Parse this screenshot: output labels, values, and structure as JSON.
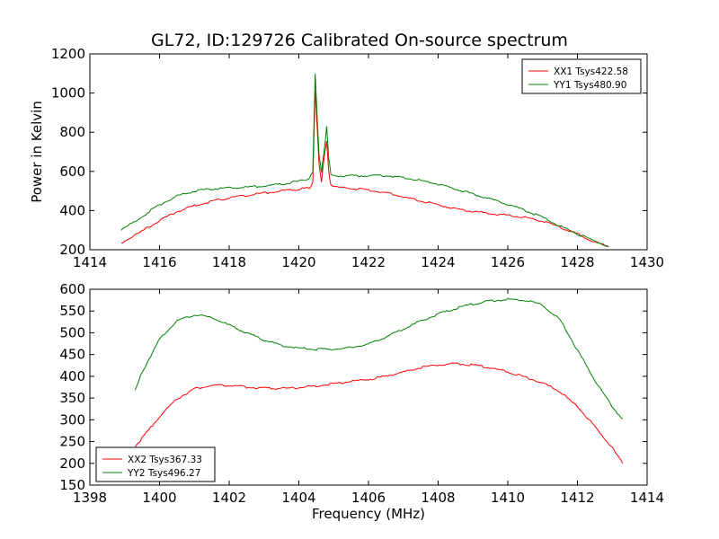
{
  "figure": {
    "title": "GL72, ID:129726 Calibrated On-source spectrum",
    "xlabel": "Frequency (MHz)"
  },
  "chart_data": [
    {
      "type": "line",
      "id": "top",
      "title": "GL72, ID:129726 Calibrated On-source spectrum",
      "xlabel": "",
      "ylabel": "Power in Kelvin",
      "xlim": [
        1414,
        1430
      ],
      "ylim": [
        200,
        1200
      ],
      "xticks": [
        1414,
        1416,
        1418,
        1420,
        1422,
        1424,
        1426,
        1428,
        1430
      ],
      "yticks": [
        200,
        400,
        600,
        800,
        1000,
        1200
      ],
      "grid": false,
      "legend_position": "top-right",
      "series": [
        {
          "name": "XX1 Tsys422.58",
          "color": "#ff0000",
          "x": [
            1414.9,
            1415.5,
            1416.0,
            1416.5,
            1417.0,
            1417.5,
            1418.0,
            1418.5,
            1419.0,
            1419.5,
            1420.0,
            1420.3,
            1420.4,
            1420.47,
            1420.52,
            1420.58,
            1420.65,
            1420.72,
            1420.8,
            1420.86,
            1420.92,
            1421.0,
            1421.5,
            1422.0,
            1422.5,
            1423.0,
            1423.5,
            1424.0,
            1424.5,
            1425.0,
            1425.5,
            1426.0,
            1426.5,
            1427.0,
            1427.5,
            1428.0,
            1428.5,
            1428.9
          ],
          "y": [
            235,
            295,
            350,
            395,
            425,
            448,
            465,
            478,
            490,
            500,
            510,
            515,
            540,
            1010,
            850,
            640,
            545,
            660,
            760,
            600,
            530,
            520,
            513,
            505,
            490,
            470,
            450,
            430,
            410,
            395,
            385,
            375,
            365,
            345,
            315,
            280,
            240,
            215
          ]
        },
        {
          "name": "YY1 Tsys480.90",
          "color": "#008000",
          "x": [
            1414.9,
            1415.5,
            1416.0,
            1416.5,
            1417.0,
            1417.5,
            1418.0,
            1418.5,
            1419.0,
            1419.5,
            1420.0,
            1420.3,
            1420.4,
            1420.47,
            1420.52,
            1420.58,
            1420.65,
            1420.72,
            1420.8,
            1420.86,
            1420.92,
            1421.0,
            1421.5,
            1422.0,
            1422.5,
            1423.0,
            1423.5,
            1424.0,
            1424.5,
            1425.0,
            1425.5,
            1426.0,
            1426.5,
            1427.0,
            1427.5,
            1428.0,
            1428.5,
            1428.9
          ],
          "y": [
            300,
            370,
            430,
            475,
            500,
            512,
            516,
            520,
            525,
            535,
            550,
            562,
            600,
            1105,
            900,
            680,
            600,
            700,
            825,
            660,
            590,
            578,
            578,
            578,
            578,
            570,
            553,
            535,
            510,
            485,
            458,
            432,
            400,
            365,
            320,
            280,
            245,
            215
          ]
        }
      ]
    },
    {
      "type": "line",
      "id": "bottom",
      "title": "",
      "xlabel": "Frequency (MHz)",
      "ylabel": "",
      "xlim": [
        1398,
        1414
      ],
      "ylim": [
        150,
        600
      ],
      "xticks": [
        1398,
        1400,
        1402,
        1404,
        1406,
        1408,
        1410,
        1412,
        1414
      ],
      "yticks": [
        150,
        200,
        250,
        300,
        350,
        400,
        450,
        500,
        550,
        600
      ],
      "grid": false,
      "legend_position": "bottom-left",
      "series": [
        {
          "name": "XX2 Tsys367.33",
          "color": "#ff0000",
          "x": [
            1399.3,
            1399.5,
            1400.0,
            1400.5,
            1401.0,
            1401.5,
            1402.0,
            1402.5,
            1403.0,
            1403.5,
            1404.0,
            1404.5,
            1405.0,
            1405.5,
            1406.0,
            1406.5,
            1407.0,
            1407.5,
            1408.0,
            1408.5,
            1409.0,
            1409.5,
            1410.0,
            1410.5,
            1411.0,
            1411.5,
            1412.0,
            1412.5,
            1413.0,
            1413.3
          ],
          "y": [
            238,
            258,
            308,
            348,
            372,
            379,
            379,
            375,
            373,
            372,
            374,
            378,
            383,
            388,
            393,
            400,
            410,
            420,
            426,
            429,
            426,
            420,
            410,
            398,
            385,
            365,
            330,
            285,
            235,
            200
          ]
        },
        {
          "name": "YY2 Tsys496.27",
          "color": "#008000",
          "x": [
            1399.3,
            1399.5,
            1400.0,
            1400.5,
            1401.0,
            1401.5,
            1402.0,
            1402.5,
            1403.0,
            1403.5,
            1404.0,
            1404.5,
            1405.0,
            1405.5,
            1406.0,
            1406.5,
            1407.0,
            1407.5,
            1408.0,
            1408.5,
            1409.0,
            1409.5,
            1410.0,
            1410.5,
            1411.0,
            1411.5,
            1412.0,
            1412.5,
            1413.0,
            1413.3
          ],
          "y": [
            370,
            410,
            485,
            528,
            541,
            536,
            517,
            500,
            483,
            471,
            465,
            462,
            462,
            466,
            474,
            490,
            508,
            527,
            543,
            556,
            566,
            573,
            577,
            575,
            563,
            530,
            460,
            390,
            330,
            302
          ]
        }
      ]
    }
  ]
}
